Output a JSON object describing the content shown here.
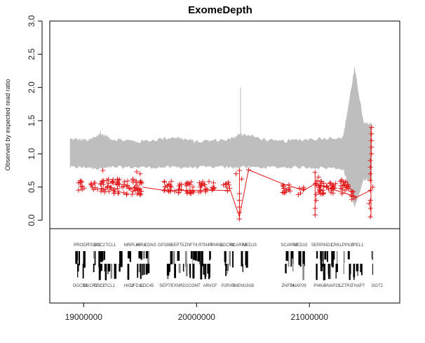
{
  "chart_data": {
    "type": "scatter",
    "title": "ExomeDepth",
    "ylabel": "Observed by expected read ratio",
    "xlabel": "",
    "ylim": [
      0,
      3
    ],
    "xlim": [
      18700000,
      21800000
    ],
    "y_ticks": [
      "0.0",
      "0.5",
      "1.0",
      "1.5",
      "2.0",
      "2.5",
      "3.0"
    ],
    "x_ticks": [
      {
        "value": 19000000,
        "label": "19000000"
      },
      {
        "value": 20000000,
        "label": "20000000"
      },
      {
        "value": 21000000,
        "label": "21000000"
      }
    ],
    "colors": {
      "points": "#e31a1c",
      "band": "#bebebe",
      "axis": "#000000",
      "genes": "#000000"
    },
    "grey_band": {
      "x": [
        18880000,
        19050000,
        19150000,
        19250000,
        19500000,
        19800000,
        20000000,
        20300000,
        20390000,
        20700000,
        21000000,
        21300000,
        21400000,
        21480000,
        21550000
      ],
      "upper": [
        1.22,
        1.2,
        1.3,
        1.22,
        1.18,
        1.25,
        1.18,
        1.22,
        1.3,
        1.18,
        1.22,
        1.25,
        2.28,
        1.45,
        1.45
      ],
      "lower": [
        0.8,
        0.8,
        0.78,
        0.8,
        0.8,
        0.8,
        0.8,
        0.8,
        0.8,
        0.8,
        0.8,
        0.78,
        0.2,
        0.62,
        0.62
      ],
      "spikes": [
        {
          "x": 19150000,
          "y": 1.35
        },
        {
          "x": 20390000,
          "y": 2.0
        }
      ]
    },
    "series": [
      {
        "clusters": [
          {
            "x": [
              18950000,
              19010000
            ],
            "y": [
              0.43,
              0.6
            ],
            "n": 10
          },
          {
            "x": [
              19060000,
              19110000
            ],
            "y": [
              0.46,
              0.58
            ],
            "n": 8
          },
          {
            "x": [
              19120000,
              19320000
            ],
            "y": [
              0.4,
              0.62
            ],
            "n": 45
          },
          {
            "x": [
              19340000,
              19520000
            ],
            "y": [
              0.38,
              0.63
            ],
            "n": 40
          },
          {
            "x": [
              19710000,
              19820000
            ],
            "y": [
              0.4,
              0.6
            ],
            "n": 18
          },
          {
            "x": [
              19840000,
              19990000
            ],
            "y": [
              0.4,
              0.6
            ],
            "n": 26
          },
          {
            "x": [
              20010000,
              20160000
            ],
            "y": [
              0.42,
              0.6
            ],
            "n": 24
          },
          {
            "x": [
              20220000,
              20300000
            ],
            "y": [
              0.44,
              0.58
            ],
            "n": 8
          },
          {
            "x": [
              20760000,
              20850000
            ],
            "y": [
              0.4,
              0.55
            ],
            "n": 14
          },
          {
            "x": [
              20900000,
              20950000
            ],
            "y": [
              0.38,
              0.5
            ],
            "n": 6
          },
          {
            "x": [
              21050000,
              21130000
            ],
            "y": [
              0.38,
              0.6
            ],
            "n": 26
          },
          {
            "x": [
              21150000,
              21240000
            ],
            "y": [
              0.4,
              0.58
            ],
            "n": 20
          },
          {
            "x": [
              21270000,
              21350000
            ],
            "y": [
              0.4,
              0.62
            ],
            "n": 22
          },
          {
            "x": [
              21370000,
              21420000
            ],
            "y": [
              0.3,
              0.45
            ],
            "n": 8
          }
        ],
        "points": [
          {
            "x": 19170000,
            "y": 0.75
          },
          {
            "x": 19470000,
            "y": 0.73
          },
          {
            "x": 19500000,
            "y": 0.7
          },
          {
            "x": 20380000,
            "y": 0.02
          },
          {
            "x": 20380000,
            "y": 0.12
          },
          {
            "x": 20380000,
            "y": 0.2
          },
          {
            "x": 20380000,
            "y": 0.3
          },
          {
            "x": 20380000,
            "y": 0.4
          },
          {
            "x": 20380000,
            "y": 0.75
          },
          {
            "x": 20460000,
            "y": 0.76
          },
          {
            "x": 20400000,
            "y": 0.62
          },
          {
            "x": 20350000,
            "y": 0.7
          },
          {
            "x": 21050000,
            "y": 0.08
          },
          {
            "x": 21050000,
            "y": 0.18
          },
          {
            "x": 21060000,
            "y": 0.3
          },
          {
            "x": 21050000,
            "y": 0.72
          },
          {
            "x": 21080000,
            "y": 0.65
          },
          {
            "x": 21540000,
            "y": 0.05
          },
          {
            "x": 21540000,
            "y": 0.18
          },
          {
            "x": 21540000,
            "y": 0.3
          },
          {
            "x": 21540000,
            "y": 0.45
          },
          {
            "x": 21540000,
            "y": 0.6
          },
          {
            "x": 21540000,
            "y": 0.7
          },
          {
            "x": 21540000,
            "y": 0.8
          },
          {
            "x": 21540000,
            "y": 0.9
          },
          {
            "x": 21550000,
            "y": 1.0
          },
          {
            "x": 21550000,
            "y": 1.1
          },
          {
            "x": 21550000,
            "y": 1.2
          },
          {
            "x": 21550000,
            "y": 1.3
          },
          {
            "x": 21550000,
            "y": 1.4
          },
          {
            "x": 21560000,
            "y": 0.5
          },
          {
            "x": 21530000,
            "y": 0.25
          }
        ],
        "line_path": [
          {
            "x": 19520000,
            "y": 0.5
          },
          {
            "x": 19710000,
            "y": 0.45
          },
          {
            "x": 20300000,
            "y": 0.45
          },
          {
            "x": 20380000,
            "y": 0.05
          },
          {
            "x": 20460000,
            "y": 0.76
          },
          {
            "x": 20760000,
            "y": 0.55
          },
          {
            "x": 20950000,
            "y": 0.45
          },
          {
            "x": 21050000,
            "y": 0.55
          },
          {
            "x": 21420000,
            "y": 0.35
          },
          {
            "x": 21540000,
            "y": 0.45
          }
        ]
      }
    ],
    "gene_labels_top": [
      {
        "x": 18980000,
        "text": "PRODH"
      },
      {
        "x": 19090000,
        "text": "TSSK2"
      },
      {
        "x": 19140000,
        "text": "GSC2"
      },
      {
        "x": 19240000,
        "text": "TCL1"
      },
      {
        "x": 19430000,
        "text": "MRPL40"
      },
      {
        "x": 19510000,
        "text": "HIRA"
      },
      {
        "x": 19590000,
        "text": "CDNS"
      },
      {
        "x": 19720000,
        "text": "GP1BB"
      },
      {
        "x": 19830000,
        "text": "SEPT5"
      },
      {
        "x": 19950000,
        "text": "ZNF74"
      },
      {
        "x": 20080000,
        "text": "RTN4R"
      },
      {
        "x": 20180000,
        "text": "PI4KA"
      },
      {
        "x": 20270000,
        "text": "DGCR8"
      },
      {
        "x": 20370000,
        "text": "SCARF2"
      },
      {
        "x": 20470000,
        "text": "MED15"
      },
      {
        "x": 20820000,
        "text": "SCARF2"
      },
      {
        "x": 20920000,
        "text": "MED15"
      },
      {
        "x": 21110000,
        "text": "SERPIND1"
      },
      {
        "x": 21240000,
        "text": "CRKL"
      },
      {
        "x": 21340000,
        "text": "PPIL2"
      },
      {
        "x": 21420000,
        "text": "YPEL1"
      }
    ],
    "gene_labels_bottom": [
      {
        "x": 18970000,
        "text": "DGCR6"
      },
      {
        "x": 19060000,
        "text": "DGCR2"
      },
      {
        "x": 19140000,
        "text": "GSC2"
      },
      {
        "x": 19210000,
        "text": "CLTCL1"
      },
      {
        "x": 19400000,
        "text": "HIC2"
      },
      {
        "x": 19470000,
        "text": "UFD1L"
      },
      {
        "x": 19560000,
        "text": "CDC45"
      },
      {
        "x": 19730000,
        "text": "SEPT5"
      },
      {
        "x": 19850000,
        "text": "TXNRD2"
      },
      {
        "x": 19980000,
        "text": "COMT"
      },
      {
        "x": 20120000,
        "text": "ARVCF"
      },
      {
        "x": 20280000,
        "text": "P2RX6"
      },
      {
        "x": 20410000,
        "text": "TMEM191B"
      },
      {
        "x": 20810000,
        "text": "ZNF74"
      },
      {
        "x": 20900000,
        "text": "SNAP29"
      },
      {
        "x": 21090000,
        "text": "PI4KA"
      },
      {
        "x": 21200000,
        "text": "SNAP29"
      },
      {
        "x": 21320000,
        "text": "LZTR1"
      },
      {
        "x": 21430000,
        "text": "THAP7"
      },
      {
        "x": 21600000,
        "text": "GGT2"
      }
    ],
    "gene_tracks": [
      {
        "x1": 18920000,
        "x2": 19000000
      },
      {
        "x1": 19060000,
        "x2": 19350000
      },
      {
        "x1": 19380000,
        "x2": 19600000
      },
      {
        "x1": 19720000,
        "x2": 19830000
      },
      {
        "x1": 19840000,
        "x2": 20170000
      },
      {
        "x1": 20230000,
        "x2": 20320000
      },
      {
        "x1": 20390000,
        "x2": 20440000
      },
      {
        "x1": 20780000,
        "x2": 20860000
      },
      {
        "x1": 20900000,
        "x2": 20950000
      },
      {
        "x1": 21050000,
        "x2": 21460000
      },
      {
        "x1": 21540000,
        "x2": 21570000
      }
    ]
  }
}
